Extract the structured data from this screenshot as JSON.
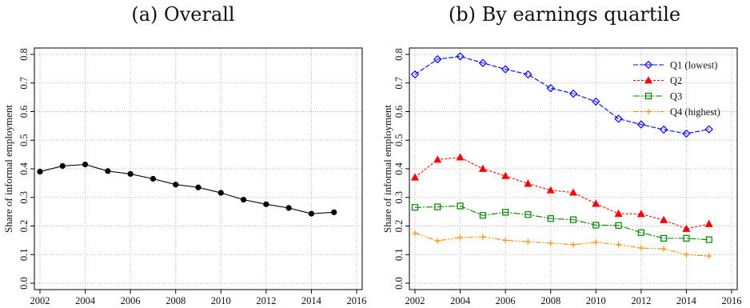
{
  "chart_data": [
    {
      "type": "line",
      "title": "(a) Overall",
      "xlabel": "",
      "ylabel": "Share of informal employment",
      "xlim": [
        2002,
        2016
      ],
      "ylim": [
        0,
        0.8
      ],
      "xticks": [
        "2002",
        "2004",
        "2006",
        "2008",
        "2010",
        "2012",
        "2014",
        "2016"
      ],
      "yticks": [
        "0.0",
        "0.1",
        "0.2",
        "0.3",
        "0.4",
        "0.5",
        "0.6",
        "0.7",
        "0.8"
      ],
      "grid": true,
      "x": [
        2002,
        2003,
        2004,
        2005,
        2006,
        2007,
        2008,
        2009,
        2010,
        2011,
        2012,
        2013,
        2014,
        2015
      ],
      "series": [
        {
          "name": "",
          "color": "#000000",
          "marker": "dot",
          "values": [
            0.39,
            0.41,
            0.415,
            0.392,
            0.382,
            0.365,
            0.345,
            0.335,
            0.316,
            0.292,
            0.276,
            0.263,
            0.243,
            0.248
          ]
        }
      ]
    },
    {
      "type": "line",
      "title": "(b) By earnings quartile",
      "xlabel": "",
      "ylabel": "Share of informal employment",
      "xlim": [
        2002,
        2016
      ],
      "ylim": [
        0,
        0.8
      ],
      "xticks": [
        "2002",
        "2004",
        "2006",
        "2008",
        "2010",
        "2012",
        "2014",
        "2016"
      ],
      "yticks": [
        "0.0",
        "0.1",
        "0.2",
        "0.3",
        "0.4",
        "0.5",
        "0.6",
        "0.7",
        "0.8"
      ],
      "grid": true,
      "legend": "top-right",
      "x": [
        2002,
        2003,
        2004,
        2005,
        2006,
        2007,
        2008,
        2009,
        2010,
        2011,
        2012,
        2013,
        2014,
        2015
      ],
      "series": [
        {
          "name": "Q1 (lowest)",
          "color": "#0000ff",
          "marker": "diamond",
          "dash": "6,2",
          "values": [
            0.73,
            0.783,
            0.793,
            0.77,
            0.748,
            0.73,
            0.682,
            0.663,
            0.635,
            0.575,
            0.555,
            0.537,
            0.523,
            0.538
          ]
        },
        {
          "name": "Q2",
          "color": "#ff0000",
          "marker": "triangle",
          "dash": "3,2",
          "values": [
            0.37,
            0.432,
            0.44,
            0.4,
            0.375,
            0.348,
            0.325,
            0.317,
            0.278,
            0.243,
            0.242,
            0.221,
            0.19,
            0.207
          ]
        },
        {
          "name": "Q3",
          "color": "#008000",
          "marker": "square",
          "dash": "8,2,2,2",
          "values": [
            0.265,
            0.267,
            0.27,
            0.237,
            0.248,
            0.24,
            0.226,
            0.222,
            0.203,
            0.202,
            0.177,
            0.157,
            0.157,
            0.152
          ]
        },
        {
          "name": "Q4 (highest)",
          "color": "#ff8c00",
          "marker": "plus",
          "dash": "7,2,2,2,2,2",
          "values": [
            0.175,
            0.148,
            0.16,
            0.162,
            0.15,
            0.145,
            0.14,
            0.135,
            0.143,
            0.135,
            0.123,
            0.12,
            0.1,
            0.095
          ]
        }
      ]
    }
  ]
}
